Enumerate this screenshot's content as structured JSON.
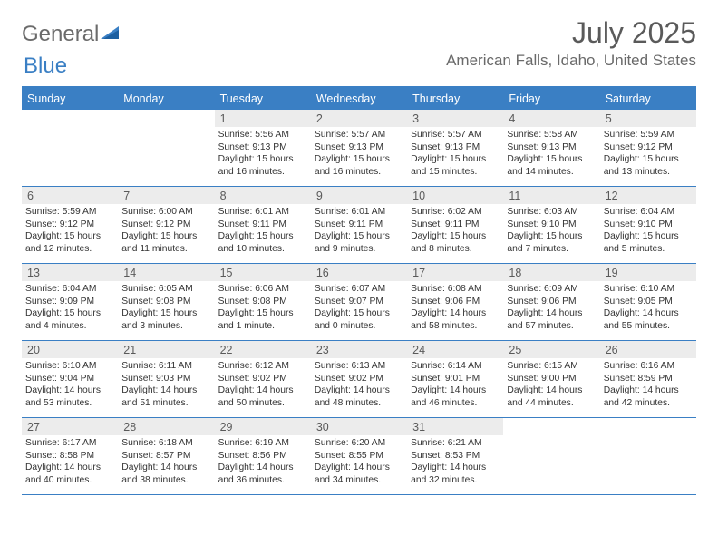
{
  "logo": {
    "word1": "General",
    "word2": "Blue"
  },
  "title": "July 2025",
  "location": "American Falls, Idaho, United States",
  "colors": {
    "accent": "#3a7fc4",
    "header_text": "#ffffff",
    "daynum_bg": "#ececec",
    "body_text": "#333333",
    "title_text": "#5a5a5a"
  },
  "day_headers": [
    "Sunday",
    "Monday",
    "Tuesday",
    "Wednesday",
    "Thursday",
    "Friday",
    "Saturday"
  ],
  "weeks": [
    [
      null,
      null,
      {
        "n": "1",
        "sr": "5:56 AM",
        "ss": "9:13 PM",
        "dl": "15 hours and 16 minutes."
      },
      {
        "n": "2",
        "sr": "5:57 AM",
        "ss": "9:13 PM",
        "dl": "15 hours and 16 minutes."
      },
      {
        "n": "3",
        "sr": "5:57 AM",
        "ss": "9:13 PM",
        "dl": "15 hours and 15 minutes."
      },
      {
        "n": "4",
        "sr": "5:58 AM",
        "ss": "9:13 PM",
        "dl": "15 hours and 14 minutes."
      },
      {
        "n": "5",
        "sr": "5:59 AM",
        "ss": "9:12 PM",
        "dl": "15 hours and 13 minutes."
      }
    ],
    [
      {
        "n": "6",
        "sr": "5:59 AM",
        "ss": "9:12 PM",
        "dl": "15 hours and 12 minutes."
      },
      {
        "n": "7",
        "sr": "6:00 AM",
        "ss": "9:12 PM",
        "dl": "15 hours and 11 minutes."
      },
      {
        "n": "8",
        "sr": "6:01 AM",
        "ss": "9:11 PM",
        "dl": "15 hours and 10 minutes."
      },
      {
        "n": "9",
        "sr": "6:01 AM",
        "ss": "9:11 PM",
        "dl": "15 hours and 9 minutes."
      },
      {
        "n": "10",
        "sr": "6:02 AM",
        "ss": "9:11 PM",
        "dl": "15 hours and 8 minutes."
      },
      {
        "n": "11",
        "sr": "6:03 AM",
        "ss": "9:10 PM",
        "dl": "15 hours and 7 minutes."
      },
      {
        "n": "12",
        "sr": "6:04 AM",
        "ss": "9:10 PM",
        "dl": "15 hours and 5 minutes."
      }
    ],
    [
      {
        "n": "13",
        "sr": "6:04 AM",
        "ss": "9:09 PM",
        "dl": "15 hours and 4 minutes."
      },
      {
        "n": "14",
        "sr": "6:05 AM",
        "ss": "9:08 PM",
        "dl": "15 hours and 3 minutes."
      },
      {
        "n": "15",
        "sr": "6:06 AM",
        "ss": "9:08 PM",
        "dl": "15 hours and 1 minute."
      },
      {
        "n": "16",
        "sr": "6:07 AM",
        "ss": "9:07 PM",
        "dl": "15 hours and 0 minutes."
      },
      {
        "n": "17",
        "sr": "6:08 AM",
        "ss": "9:06 PM",
        "dl": "14 hours and 58 minutes."
      },
      {
        "n": "18",
        "sr": "6:09 AM",
        "ss": "9:06 PM",
        "dl": "14 hours and 57 minutes."
      },
      {
        "n": "19",
        "sr": "6:10 AM",
        "ss": "9:05 PM",
        "dl": "14 hours and 55 minutes."
      }
    ],
    [
      {
        "n": "20",
        "sr": "6:10 AM",
        "ss": "9:04 PM",
        "dl": "14 hours and 53 minutes."
      },
      {
        "n": "21",
        "sr": "6:11 AM",
        "ss": "9:03 PM",
        "dl": "14 hours and 51 minutes."
      },
      {
        "n": "22",
        "sr": "6:12 AM",
        "ss": "9:02 PM",
        "dl": "14 hours and 50 minutes."
      },
      {
        "n": "23",
        "sr": "6:13 AM",
        "ss": "9:02 PM",
        "dl": "14 hours and 48 minutes."
      },
      {
        "n": "24",
        "sr": "6:14 AM",
        "ss": "9:01 PM",
        "dl": "14 hours and 46 minutes."
      },
      {
        "n": "25",
        "sr": "6:15 AM",
        "ss": "9:00 PM",
        "dl": "14 hours and 44 minutes."
      },
      {
        "n": "26",
        "sr": "6:16 AM",
        "ss": "8:59 PM",
        "dl": "14 hours and 42 minutes."
      }
    ],
    [
      {
        "n": "27",
        "sr": "6:17 AM",
        "ss": "8:58 PM",
        "dl": "14 hours and 40 minutes."
      },
      {
        "n": "28",
        "sr": "6:18 AM",
        "ss": "8:57 PM",
        "dl": "14 hours and 38 minutes."
      },
      {
        "n": "29",
        "sr": "6:19 AM",
        "ss": "8:56 PM",
        "dl": "14 hours and 36 minutes."
      },
      {
        "n": "30",
        "sr": "6:20 AM",
        "ss": "8:55 PM",
        "dl": "14 hours and 34 minutes."
      },
      {
        "n": "31",
        "sr": "6:21 AM",
        "ss": "8:53 PM",
        "dl": "14 hours and 32 minutes."
      },
      null,
      null
    ]
  ],
  "labels": {
    "sunrise": "Sunrise:",
    "sunset": "Sunset:",
    "daylight": "Daylight:"
  }
}
